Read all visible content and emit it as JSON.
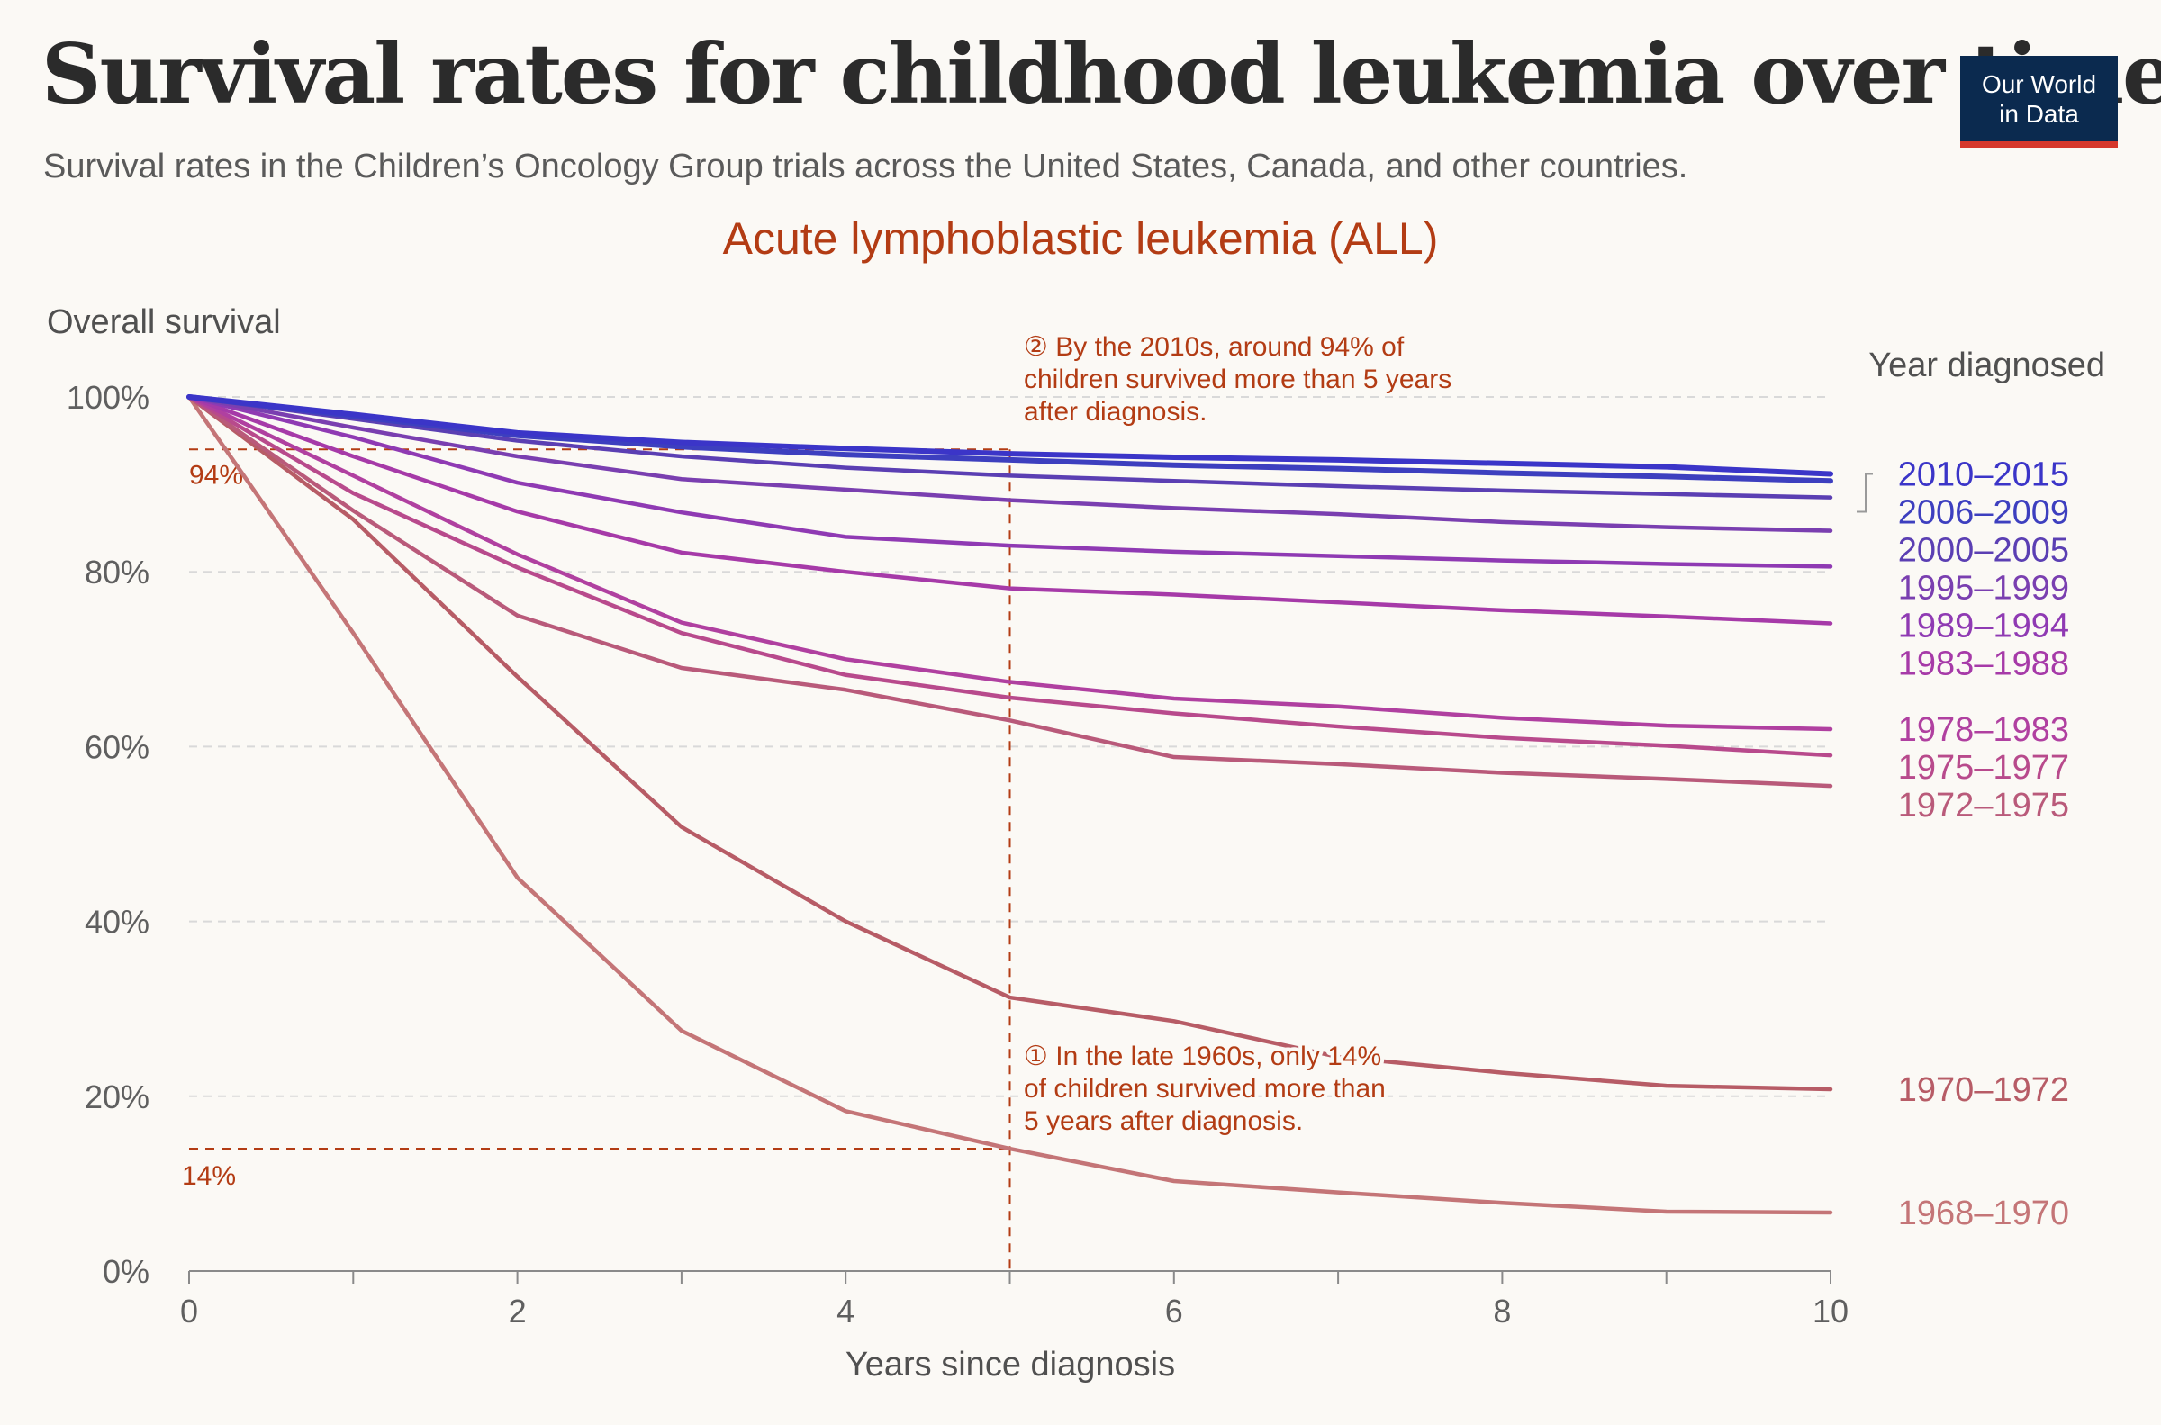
{
  "header": {
    "title": "Survival rates for childhood leukemia over time",
    "subtitle": "Survival rates in the Children’s Oncology Group trials across the United States, Canada, and other countries."
  },
  "logo": {
    "line1": "Our World",
    "line2": "in Data"
  },
  "colors": {
    "background": "#fbf9f5",
    "annotation": "#b33c14",
    "logo_bg": "#0b2a4f",
    "logo_bar": "#d6382c"
  },
  "chart_data": {
    "type": "line",
    "title": "Acute lymphoblastic leukemia (ALL)",
    "xlabel": "Years since diagnosis",
    "ylabel": "Overall survival",
    "legend_title": "Year diagnosed",
    "legend_placement": "right",
    "xlim": [
      0,
      10
    ],
    "ylim": [
      0,
      100
    ],
    "x_ticks": [
      0,
      2,
      4,
      6,
      8,
      10
    ],
    "y_ticks": [
      0,
      20,
      40,
      60,
      80,
      100
    ],
    "y_tick_labels": [
      "0%",
      "20%",
      "40%",
      "60%",
      "80%",
      "100%"
    ],
    "x": [
      0,
      1,
      2,
      3,
      4,
      5,
      6,
      7,
      8,
      9,
      10
    ],
    "series": [
      {
        "name": "2010–2015",
        "color": "#3b35c8",
        "values": [
          100,
          98,
          95.9,
          94.8,
          94.1,
          93.5,
          93.1,
          92.8,
          92.4,
          92.0,
          91.2
        ]
      },
      {
        "name": "2006–2009",
        "color": "#3d3fbf",
        "values": [
          100,
          97.8,
          95.6,
          94.3,
          93.4,
          92.8,
          92.2,
          91.8,
          91.3,
          90.9,
          90.4
        ]
      },
      {
        "name": "2000–2005",
        "color": "#5b3fb3",
        "values": [
          100,
          97.5,
          95.0,
          93.2,
          91.9,
          91.0,
          90.4,
          89.8,
          89.3,
          88.9,
          88.5
        ]
      },
      {
        "name": "1995–1999",
        "color": "#7a3fb0",
        "values": [
          100,
          96.5,
          93.2,
          90.6,
          89.4,
          88.2,
          87.3,
          86.6,
          85.7,
          85.1,
          84.7
        ]
      },
      {
        "name": "1989–1994",
        "color": "#8f3ab3",
        "values": [
          100,
          95.4,
          90.2,
          86.8,
          84.0,
          83.0,
          82.3,
          81.8,
          81.3,
          80.9,
          80.6
        ]
      },
      {
        "name": "1983–1988",
        "color": "#a63aa8",
        "values": [
          100,
          93.2,
          86.9,
          82.2,
          80.0,
          78.1,
          77.4,
          76.5,
          75.6,
          74.9,
          74.1
        ]
      },
      {
        "name": "1978–1983",
        "color": "#b040a0",
        "values": [
          100,
          91.0,
          82.0,
          74.2,
          70.0,
          67.4,
          65.5,
          64.6,
          63.3,
          62.4,
          62.0
        ]
      },
      {
        "name": "1975–1977",
        "color": "#b84a8c",
        "values": [
          100,
          89.0,
          80.5,
          73.0,
          68.2,
          65.6,
          63.8,
          62.3,
          61.0,
          60.1,
          59.0
        ]
      },
      {
        "name": "1972–1975",
        "color": "#b95a7a",
        "values": [
          100,
          87.0,
          75.0,
          69.0,
          66.5,
          63.0,
          58.8,
          58.0,
          57.0,
          56.3,
          55.5
        ]
      },
      {
        "name": "1970–1972",
        "color": "#b75c66",
        "values": [
          100,
          86.0,
          68.0,
          50.8,
          40.0,
          31.3,
          28.6,
          24.5,
          22.7,
          21.2,
          20.8
        ]
      },
      {
        "name": "1968–1970",
        "color": "#c47577",
        "values": [
          100,
          73.0,
          45.0,
          27.5,
          18.3,
          14.0,
          10.3,
          9.0,
          7.8,
          6.8,
          6.7
        ]
      }
    ],
    "reference": {
      "x": 5,
      "y_high": 94,
      "y_low": 14
    },
    "annotations": {
      "high_label": "94%",
      "low_label": "14%",
      "note_2010s": [
        "② By the 2010s, around 94% of",
        "children survived more than 5 years",
        "after diagnosis."
      ],
      "note_1960s": [
        "① In the late 1960s, only 14%",
        "of children survived more than",
        "5 years after diagnosis."
      ]
    }
  }
}
